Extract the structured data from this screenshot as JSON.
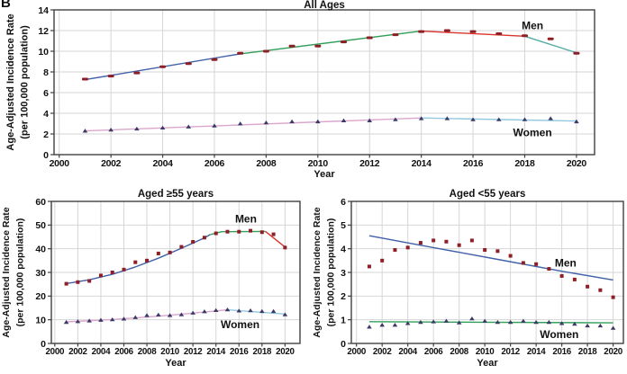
{
  "panel_label": "B",
  "colors": {
    "men_marker": "#8e1f26",
    "women_marker": "#3a3a66",
    "trend_blue": "#4060a8",
    "trend_green": "#33a05a",
    "trend_red": "#d9352b",
    "trend_teal": "#52aaa5",
    "trend_pink": "#dba6cb",
    "trend_lightblue": "#92c8e0",
    "axis": "#404040",
    "grid": "#d6d6d6",
    "text": "#111111"
  },
  "chart_data": [
    {
      "id": "all-ages",
      "type": "scatter+line",
      "title": "All Ages",
      "xlabel": "Year",
      "ylabel_line1": "Age-Adjusted Incidence Rate",
      "ylabel_line2": "(per 100,000 population)",
      "xlim": [
        1999.8,
        2020.7
      ],
      "ylim": [
        0,
        14
      ],
      "xticks": [
        2000,
        2002,
        2004,
        2006,
        2008,
        2010,
        2012,
        2014,
        2016,
        2018,
        2020
      ],
      "yticks": [
        0,
        2,
        4,
        6,
        8,
        10,
        12,
        14
      ],
      "years": [
        2001,
        2002,
        2003,
        2004,
        2005,
        2006,
        2007,
        2008,
        2009,
        2010,
        2011,
        2012,
        2013,
        2014,
        2015,
        2016,
        2017,
        2018,
        2019,
        2020
      ],
      "series": [
        {
          "name": "Men",
          "marker": "dash",
          "marker_color": "#8e1f26",
          "values": [
            7.3,
            7.6,
            7.9,
            8.5,
            8.8,
            9.2,
            9.8,
            10.0,
            10.5,
            10.5,
            10.9,
            11.3,
            11.6,
            11.9,
            12.0,
            11.9,
            11.7,
            11.5,
            11.2,
            9.8
          ],
          "trend": [
            {
              "color": "#4060a8",
              "points": [
                [
                  2001,
                  7.25
                ],
                [
                  2007,
                  9.75
                ]
              ]
            },
            {
              "color": "#33a05a",
              "points": [
                [
                  2007,
                  9.75
                ],
                [
                  2014,
                  11.95
                ]
              ]
            },
            {
              "color": "#d9352b",
              "points": [
                [
                  2014,
                  11.95
                ],
                [
                  2018,
                  11.45
                ]
              ]
            },
            {
              "color": "#52aaa5",
              "points": [
                [
                  2018,
                  11.45
                ],
                [
                  2020,
                  9.85
                ]
              ]
            }
          ],
          "label_x": 2018.3,
          "label_y": 12.15
        },
        {
          "name": "Women",
          "marker": "triangle",
          "marker_color": "#3a3a66",
          "values": [
            2.3,
            2.4,
            2.5,
            2.6,
            2.7,
            2.8,
            3.0,
            3.1,
            3.2,
            3.2,
            3.3,
            3.3,
            3.4,
            3.5,
            3.5,
            3.4,
            3.4,
            3.4,
            3.5,
            3.2
          ],
          "trend": [
            {
              "color": "#dba6cb",
              "points": [
                [
                  2001,
                  2.3
                ],
                [
                  2014,
                  3.55
                ]
              ]
            },
            {
              "color": "#92c8e0",
              "points": [
                [
                  2014,
                  3.55
                ],
                [
                  2020,
                  3.25
                ]
              ]
            }
          ],
          "label_x": 2018.3,
          "label_y": 1.8
        }
      ]
    },
    {
      "id": "aged-55-plus",
      "type": "scatter+line",
      "title": "Aged ≥55 years",
      "xlabel": "Year",
      "ylabel_line1": "Age-Adjusted Incidence Rate",
      "ylabel_line2": "(per 100,000 population)",
      "xlim": [
        1999.7,
        2021.3
      ],
      "ylim": [
        0,
        60
      ],
      "xticks": [
        2000,
        2002,
        2004,
        2006,
        2008,
        2010,
        2012,
        2014,
        2016,
        2018,
        2020
      ],
      "yticks": [
        0,
        10,
        20,
        30,
        40,
        50,
        60
      ],
      "years": [
        2001,
        2002,
        2003,
        2004,
        2005,
        2006,
        2007,
        2008,
        2009,
        2010,
        2011,
        2012,
        2013,
        2014,
        2015,
        2016,
        2017,
        2018,
        2019,
        2020
      ],
      "series": [
        {
          "name": "Men",
          "marker": "square",
          "marker_color": "#8e1f26",
          "values": [
            25.2,
            25.9,
            26.4,
            28.7,
            30.0,
            31.2,
            34.3,
            35.0,
            38.0,
            38.4,
            40.8,
            42.9,
            44.7,
            46.5,
            47.2,
            47.2,
            47.6,
            47.0,
            46.1,
            40.5
          ],
          "trend": [
            {
              "color": "#4060a8",
              "points": [
                [
                  2001,
                  25.3
                ],
                [
                  2003,
                  26.9
                ],
                [
                  2005,
                  29.2
                ],
                [
                  2007,
                  32.3
                ],
                [
                  2009,
                  36.0
                ],
                [
                  2011,
                  40.2
                ],
                [
                  2013,
                  44.6
                ],
                [
                  2013.5,
                  46.0
                ]
              ]
            },
            {
              "color": "#33a05a",
              "points": [
                [
                  2013.5,
                  46.0
                ],
                [
                  2014.5,
                  47.2
                ],
                [
                  2018.3,
                  47.3
                ]
              ]
            },
            {
              "color": "#d9352b",
              "points": [
                [
                  2018.3,
                  47.3
                ],
                [
                  2020,
                  40.7
                ]
              ]
            }
          ],
          "label_x": 2016.6,
          "label_y": 51.0
        },
        {
          "name": "Women",
          "marker": "triangle",
          "marker_color": "#3a3a66",
          "values": [
            9.0,
            9.3,
            9.6,
            9.9,
            10.1,
            10.4,
            11.0,
            11.9,
            12.1,
            11.9,
            12.2,
            12.9,
            13.5,
            14.0,
            14.3,
            13.8,
            13.9,
            13.6,
            13.6,
            12.2
          ],
          "trend": [
            {
              "color": "#dba6cb",
              "points": [
                [
                  2001,
                  9.1
                ],
                [
                  2005,
                  10.1
                ],
                [
                  2009,
                  11.5
                ],
                [
                  2012,
                  12.8
                ],
                [
                  2015,
                  14.2
                ]
              ]
            },
            {
              "color": "#92c8e0",
              "points": [
                [
                  2015,
                  14.2
                ],
                [
                  2020,
                  12.4
                ]
              ]
            }
          ],
          "label_x": 2016.1,
          "label_y": 6.5
        }
      ]
    },
    {
      "id": "aged-under-55",
      "type": "scatter+line",
      "title": "Aged <55 years",
      "xlabel": "Year",
      "ylabel_line1": "Age-Adjusted Incidence Rate",
      "ylabel_line2": "(per 100,000 population)",
      "xlim": [
        1999.6,
        2020.8
      ],
      "ylim": [
        0,
        6
      ],
      "xticks": [
        2000,
        2002,
        2004,
        2006,
        2008,
        2010,
        2012,
        2014,
        2016,
        2018,
        2020
      ],
      "yticks": [
        0,
        1,
        2,
        3,
        4,
        5,
        6
      ],
      "years": [
        2001,
        2002,
        2003,
        2004,
        2005,
        2006,
        2007,
        2008,
        2009,
        2010,
        2011,
        2012,
        2013,
        2014,
        2015,
        2016,
        2017,
        2018,
        2019,
        2020
      ],
      "series": [
        {
          "name": "Men",
          "marker": "square",
          "marker_color": "#8e1f26",
          "values": [
            3.25,
            3.5,
            3.95,
            4.05,
            4.25,
            4.35,
            4.3,
            4.15,
            4.35,
            3.95,
            3.9,
            3.7,
            3.4,
            3.35,
            3.15,
            2.85,
            2.7,
            2.4,
            2.25,
            1.95
          ],
          "trend": [
            {
              "color": "#4060a8",
              "points": [
                [
                  2001,
                  4.55
                ],
                [
                  2006,
                  4.05
                ],
                [
                  2011,
                  3.55
                ],
                [
                  2016,
                  3.05
                ],
                [
                  2020,
                  2.68
                ]
              ]
            }
          ],
          "label_x": 2016.3,
          "label_y": 3.25
        },
        {
          "name": "Women",
          "marker": "triangle",
          "marker_color": "#3a3a66",
          "values": [
            0.7,
            0.78,
            0.78,
            0.85,
            0.9,
            0.92,
            0.95,
            0.88,
            1.05,
            0.95,
            0.9,
            0.9,
            0.95,
            0.9,
            0.9,
            0.85,
            0.82,
            0.75,
            0.75,
            0.65
          ],
          "trend": [
            {
              "color": "#33a05a",
              "points": [
                [
                  2001,
                  0.92
                ],
                [
                  2020,
                  0.87
                ]
              ]
            }
          ],
          "label_x": 2015.8,
          "label_y": 0.22
        }
      ]
    }
  ]
}
